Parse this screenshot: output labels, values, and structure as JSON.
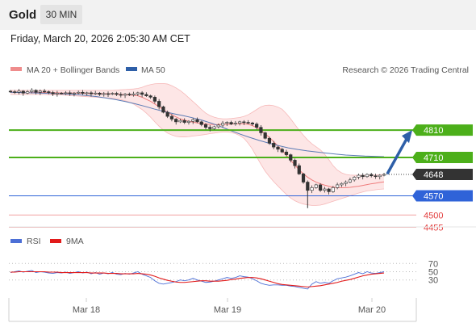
{
  "header": {
    "symbol": "Gold",
    "timeframe": "30 MIN"
  },
  "timestamp": "Friday, March 20, 2026 2:05:30 AM CET",
  "legend": {
    "bb_label": "MA 20 + Bollinger Bands",
    "ma50_label": "MA 50",
    "copyright": "Research © 2026 Trading Central"
  },
  "rsi_legend": {
    "rsi_label": "RSI",
    "ma_label": "9MA"
  },
  "colors": {
    "resistance": "#4caf1a",
    "support": "#2f63d8",
    "price": "#333333",
    "bb_fill": "#fde2e2",
    "ma20": "#ef7d7d",
    "ma50": "#5b7bb5",
    "rsi": "#4c6fd6",
    "rsi_ma": "#e21a1a",
    "arrow": "#2e5fa8"
  },
  "chart_data": {
    "type": "candlestick",
    "ylim": [
      4430,
      4990
    ],
    "x_ticks": [
      "Mar 18",
      "Mar 19",
      "Mar 20"
    ],
    "close": [
      4950,
      4948,
      4952,
      4945,
      4950,
      4955,
      4948,
      4952,
      4950,
      4947,
      4942,
      4945,
      4944,
      4946,
      4943,
      4945,
      4948,
      4944,
      4946,
      4942,
      4945,
      4940,
      4943,
      4941,
      4944,
      4940,
      4937,
      4941,
      4938,
      4942,
      4946,
      4940,
      4935,
      4930,
      4915,
      4895,
      4875,
      4860,
      4850,
      4840,
      4845,
      4838,
      4842,
      4848,
      4840,
      4830,
      4820,
      4815,
      4822,
      4828,
      4835,
      4838,
      4832,
      4835,
      4840,
      4838,
      4836,
      4832,
      4820,
      4800,
      4780,
      4762,
      4748,
      4740,
      4730,
      4720,
      4700,
      4680,
      4650,
      4620,
      4590,
      4600,
      4610,
      4590,
      4595,
      4585,
      4600,
      4610,
      4615,
      4620,
      4628,
      4638,
      4645,
      4640,
      4648,
      4643,
      4640,
      4645,
      4648
    ],
    "ma20": [
      4948,
      4948,
      4948,
      4947,
      4947,
      4947,
      4947,
      4947,
      4947,
      4946,
      4946,
      4946,
      4945,
      4945,
      4945,
      4945,
      4945,
      4945,
      4944,
      4944,
      4944,
      4943,
      4943,
      4942,
      4942,
      4941,
      4940,
      4939,
      4938,
      4937,
      4935,
      4930,
      4922,
      4915,
      4905,
      4895,
      4885,
      4875,
      4866,
      4858,
      4851,
      4846,
      4842,
      4839,
      4836,
      4834,
      4832,
      4831,
      4830,
      4830,
      4831,
      4831,
      4832,
      4833,
      4833,
      4833,
      4831,
      4826,
      4819,
      4809,
      4796,
      4783,
      4768,
      4752,
      4735,
      4718,
      4700,
      4682,
      4665,
      4650,
      4638,
      4628,
      4620,
      4614,
      4609,
      4605,
      4602,
      4600,
      4600,
      4600,
      4601,
      4603,
      4605,
      4608,
      4611,
      4614,
      4616,
      4619,
      4621
    ],
    "bb_upper": [
      4955,
      4955,
      4955,
      4955,
      4955,
      4955,
      4955,
      4955,
      4955,
      4955,
      4955,
      4955,
      4955,
      4955,
      4955,
      4955,
      4955,
      4955,
      4955,
      4955,
      4955,
      4955,
      4955,
      4955,
      4955,
      4956,
      4957,
      4958,
      4959,
      4960,
      4962,
      4966,
      4972,
      4976,
      4979,
      4980,
      4980,
      4978,
      4972,
      4964,
      4954,
      4942,
      4928,
      4914,
      4900,
      4885,
      4872,
      4863,
      4857,
      4853,
      4851,
      4851,
      4852,
      4854,
      4856,
      4860,
      4866,
      4875,
      4885,
      4895,
      4900,
      4901,
      4899,
      4894,
      4886,
      4870,
      4851,
      4830,
      4810,
      4791,
      4774,
      4760,
      4749,
      4738,
      4722,
      4702,
      4680,
      4664,
      4654,
      4648,
      4646,
      4645,
      4645,
      4645,
      4645,
      4646,
      4646,
      4647,
      4648
    ],
    "bb_lower": [
      4940,
      4940,
      4940,
      4940,
      4940,
      4940,
      4940,
      4940,
      4940,
      4939,
      4939,
      4939,
      4938,
      4937,
      4936,
      4935,
      4934,
      4933,
      4932,
      4931,
      4930,
      4929,
      4928,
      4927,
      4926,
      4924,
      4921,
      4917,
      4912,
      4905,
      4895,
      4885,
      4872,
      4857,
      4840,
      4824,
      4810,
      4799,
      4792,
      4787,
      4785,
      4785,
      4786,
      4788,
      4790,
      4792,
      4794,
      4797,
      4799,
      4801,
      4803,
      4803,
      4801,
      4797,
      4790,
      4780,
      4762,
      4740,
      4712,
      4685,
      4660,
      4640,
      4622,
      4606,
      4590,
      4575,
      4562,
      4552,
      4545,
      4540,
      4537,
      4535,
      4535,
      4536,
      4540,
      4545,
      4550,
      4555,
      4560,
      4565,
      4570,
      4575,
      4580,
      4584,
      4588,
      4590,
      4592,
      4594,
      4595
    ],
    "ma50_values": [
      4948,
      4947,
      4946,
      4945,
      4944,
      4943,
      4941,
      4939,
      4936,
      4932,
      4927,
      4921,
      4914,
      4906,
      4897,
      4887,
      4878,
      4870,
      4863,
      4855,
      4846,
      4835,
      4822,
      4808,
      4795,
      4783,
      4772,
      4762,
      4753,
      4745,
      4739,
      4734,
      4730,
      4726,
      4722,
      4719,
      4717,
      4715,
      4714,
      4713
    ],
    "levels": [
      {
        "label": "4810",
        "value": 4810,
        "style": "resistance"
      },
      {
        "label": "4710",
        "value": 4710,
        "style": "resistance"
      },
      {
        "label": "4648",
        "value": 4648,
        "style": "price"
      },
      {
        "label": "4570",
        "value": 4570,
        "style": "support"
      },
      {
        "label": "4500",
        "value": 4500,
        "style": "minor"
      },
      {
        "label": "4455",
        "value": 4455,
        "style": "minor"
      }
    ],
    "forecast": {
      "from": 4650,
      "to": 4810
    },
    "rsi": {
      "ylim": [
        0,
        100
      ],
      "ticks": [
        "70",
        "50",
        "30"
      ],
      "tick_values": [
        70,
        50,
        30
      ],
      "values": [
        48,
        50,
        52,
        49,
        51,
        53,
        48,
        50,
        49,
        47,
        46,
        48,
        47,
        49,
        46,
        48,
        50,
        47,
        49,
        45,
        48,
        44,
        47,
        45,
        48,
        44,
        43,
        46,
        44,
        47,
        50,
        44,
        40,
        36,
        28,
        22,
        20,
        22,
        24,
        26,
        30,
        28,
        30,
        34,
        30,
        27,
        24,
        25,
        27,
        30,
        33,
        36,
        34,
        36,
        40,
        38,
        37,
        33,
        28,
        22,
        19,
        17,
        18,
        18,
        17,
        17,
        15,
        14,
        12,
        10,
        8,
        20,
        26,
        22,
        24,
        22,
        28,
        33,
        35,
        37,
        40,
        44,
        48,
        45,
        50,
        47,
        46,
        48,
        50
      ],
      "ma_values": [
        49,
        49,
        50,
        50,
        50,
        50,
        50,
        50,
        50,
        49,
        49,
        49,
        48,
        48,
        48,
        48,
        48,
        48,
        48,
        47,
        47,
        47,
        47,
        46,
        46,
        46,
        45,
        45,
        45,
        45,
        46,
        45,
        44,
        42,
        39,
        35,
        32,
        29,
        27,
        25,
        24,
        24,
        25,
        26,
        27,
        28,
        28,
        27,
        27,
        27,
        28,
        29,
        31,
        32,
        34,
        35,
        36,
        36,
        35,
        33,
        30,
        27,
        24,
        21,
        19,
        18,
        17,
        16,
        15,
        14,
        13,
        14,
        15,
        16,
        18,
        20,
        22,
        24,
        27,
        29,
        31,
        34,
        37,
        40,
        42,
        44,
        45,
        46,
        47
      ]
    }
  }
}
